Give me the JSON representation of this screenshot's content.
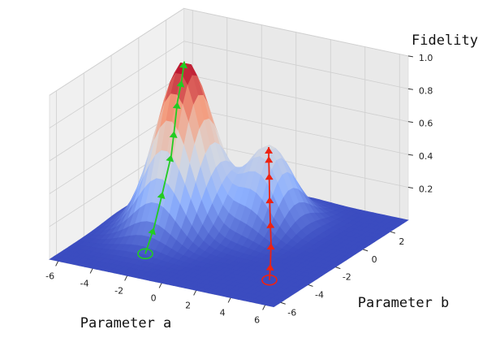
{
  "chart_data": {
    "type": "surface3d",
    "xlabel": "Parameter a",
    "ylabel": "Parameter b",
    "zlabel": "Fidelity",
    "xlim": [
      -6.5,
      6.5
    ],
    "ylim": [
      -6.5,
      3.3
    ],
    "zlim": [
      0,
      1
    ],
    "xticks": [
      -6,
      -4,
      -2,
      0,
      2,
      4,
      6
    ],
    "yticks": [
      -6,
      -4,
      -2,
      0,
      2
    ],
    "zticks": [
      0.2,
      0.4,
      0.6,
      0.8,
      {
        "value": 1,
        "label": "1.0"
      }
    ],
    "grid": true,
    "surface": {
      "peaks": [
        {
          "a": -2.9,
          "b": -1.2,
          "height": 1.0,
          "spread": 1.3
        },
        {
          "a": 0.8,
          "b": 0.3,
          "height": 0.48,
          "spread": 1.1
        }
      ]
    },
    "trajectories": [
      {
        "color": "#22cc22",
        "a": [
          -2.7,
          -2.75,
          -2.8,
          -2.7,
          -2.85,
          -2.9,
          -2.85,
          -2.9
        ],
        "b": [
          -4.3,
          -3.6,
          -2.9,
          -2.4,
          -2.0,
          -1.7,
          -1.45,
          -1.2
        ],
        "fidelity": [
          0,
          0.12,
          0.3,
          0.5,
          0.62,
          0.78,
          0.9,
          1.0
        ]
      },
      {
        "color": "#ee2211",
        "a": [
          4.5,
          4.0,
          3.4,
          2.8,
          2.2,
          1.7,
          1.2,
          0.8
        ],
        "b": [
          -4.3,
          -3.6,
          -2.8,
          -2.1,
          -1.4,
          -0.8,
          -0.2,
          0.3
        ],
        "fidelity": [
          0,
          0.05,
          0.12,
          0.2,
          0.3,
          0.4,
          0.46,
          0.48
        ]
      }
    ]
  }
}
